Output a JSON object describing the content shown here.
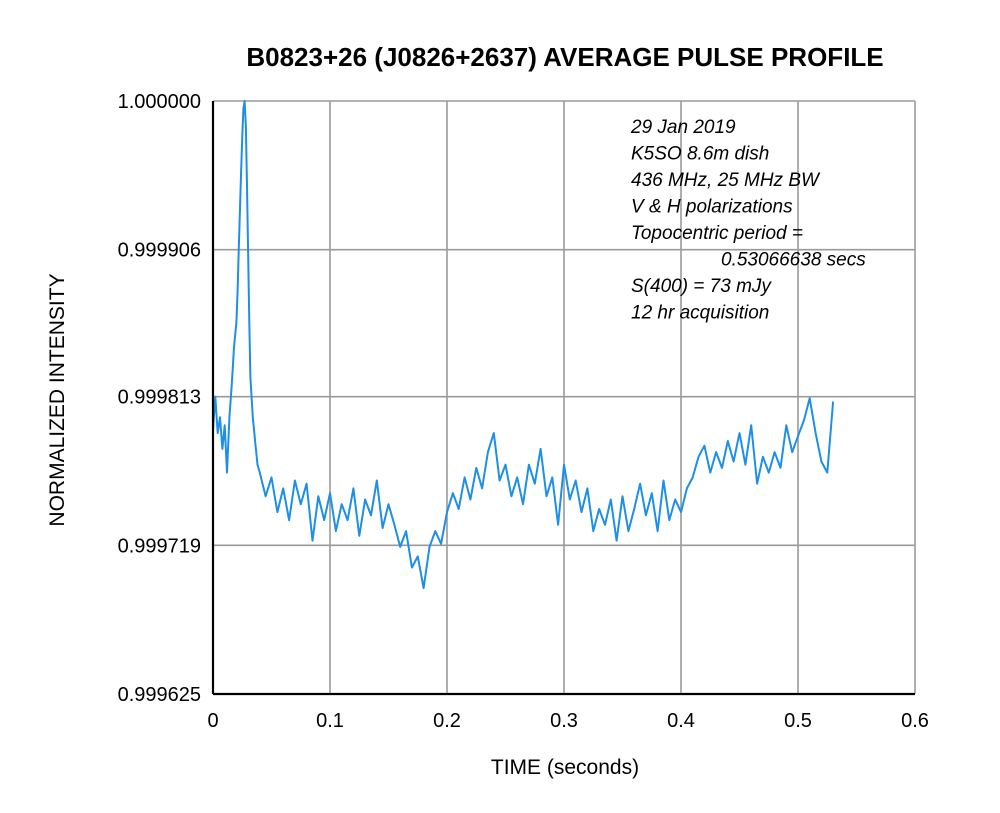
{
  "chart_data": {
    "type": "line",
    "title": "B0823+26 (J0826+2637) AVERAGE PULSE PROFILE",
    "xlabel": "TIME (seconds)",
    "ylabel": "NORMALIZED INTENSITY",
    "xlim": [
      0,
      0.6
    ],
    "ylim": [
      0.999625,
      1.0
    ],
    "x_ticks": [
      0,
      0.1,
      0.2,
      0.3,
      0.4,
      0.5,
      0.6
    ],
    "x_tick_labels": [
      "0",
      "0.1",
      "0.2",
      "0.3",
      "0.4",
      "0.5",
      "0.6"
    ],
    "y_ticks": [
      0.999625,
      0.999719,
      0.999813,
      0.999906,
      1.0
    ],
    "y_tick_labels": [
      "0.999625",
      "0.999719",
      "0.999813",
      "0.999906",
      "1.000000"
    ],
    "grid": true,
    "line_color": "#1e8fe6",
    "annotation": [
      "29 Jan 2019",
      "K5SO 8.6m dish",
      "436 MHz, 25 MHz BW",
      "V & H polarizations",
      "Topocentric period =",
      "0.53066638 secs",
      "S(400) = 73 mJy",
      "12 hr acquisition"
    ],
    "series": [
      {
        "x": [
          0.0,
          0.002,
          0.004,
          0.006,
          0.008,
          0.01,
          0.012,
          0.014,
          0.016,
          0.018,
          0.02,
          0.021,
          0.022,
          0.023,
          0.024,
          0.025,
          0.026,
          0.027,
          0.028,
          0.029,
          0.03,
          0.031,
          0.032,
          0.034,
          0.036,
          0.038,
          0.04,
          0.045,
          0.05,
          0.055,
          0.06,
          0.065,
          0.07,
          0.075,
          0.08,
          0.085,
          0.09,
          0.095,
          0.1,
          0.105,
          0.11,
          0.115,
          0.12,
          0.125,
          0.13,
          0.135,
          0.14,
          0.145,
          0.15,
          0.155,
          0.16,
          0.165,
          0.17,
          0.175,
          0.18,
          0.185,
          0.19,
          0.195,
          0.2,
          0.205,
          0.21,
          0.215,
          0.22,
          0.225,
          0.23,
          0.235,
          0.24,
          0.245,
          0.25,
          0.255,
          0.26,
          0.265,
          0.27,
          0.275,
          0.28,
          0.285,
          0.29,
          0.295,
          0.3,
          0.305,
          0.31,
          0.315,
          0.32,
          0.325,
          0.33,
          0.335,
          0.34,
          0.345,
          0.35,
          0.355,
          0.36,
          0.365,
          0.37,
          0.375,
          0.38,
          0.385,
          0.39,
          0.395,
          0.4,
          0.405,
          0.41,
          0.415,
          0.42,
          0.425,
          0.43,
          0.435,
          0.44,
          0.445,
          0.45,
          0.455,
          0.46,
          0.465,
          0.47,
          0.475,
          0.48,
          0.485,
          0.49,
          0.495,
          0.5,
          0.505,
          0.51,
          0.515,
          0.52,
          0.525,
          0.53
        ],
        "y": [
          0.999792,
          0.999813,
          0.99979,
          0.9998,
          0.99978,
          0.999795,
          0.999765,
          0.9998,
          0.99982,
          0.999845,
          0.99986,
          0.99988,
          0.999905,
          0.99993,
          0.999955,
          0.999978,
          0.999995,
          1.0,
          0.999985,
          0.99995,
          0.999905,
          0.99986,
          0.999825,
          0.9998,
          0.999785,
          0.99977,
          0.999765,
          0.99975,
          0.999762,
          0.99974,
          0.999755,
          0.999735,
          0.99976,
          0.999745,
          0.999758,
          0.999722,
          0.99975,
          0.999735,
          0.999752,
          0.999728,
          0.999745,
          0.999735,
          0.999755,
          0.999725,
          0.999748,
          0.999738,
          0.99976,
          0.99973,
          0.999745,
          0.999732,
          0.999718,
          0.999728,
          0.999705,
          0.999712,
          0.999692,
          0.999718,
          0.999728,
          0.99972,
          0.99974,
          0.999752,
          0.999742,
          0.999762,
          0.999748,
          0.999768,
          0.999755,
          0.999778,
          0.99979,
          0.99976,
          0.99977,
          0.99975,
          0.999762,
          0.999745,
          0.99977,
          0.999758,
          0.99978,
          0.99975,
          0.999762,
          0.999732,
          0.99977,
          0.999748,
          0.99976,
          0.99974,
          0.999755,
          0.999728,
          0.999742,
          0.999732,
          0.999748,
          0.999722,
          0.99975,
          0.999728,
          0.999742,
          0.999758,
          0.999738,
          0.999752,
          0.999728,
          0.99976,
          0.999735,
          0.999748,
          0.99974,
          0.999755,
          0.999762,
          0.999775,
          0.999782,
          0.999765,
          0.999778,
          0.999768,
          0.999785,
          0.999772,
          0.99979,
          0.99977,
          0.999795,
          0.999758,
          0.999775,
          0.999765,
          0.999778,
          0.999768,
          0.999795,
          0.999778,
          0.999788,
          0.999798,
          0.999812,
          0.99979,
          0.999772,
          0.999765,
          0.99981
        ]
      }
    ]
  }
}
